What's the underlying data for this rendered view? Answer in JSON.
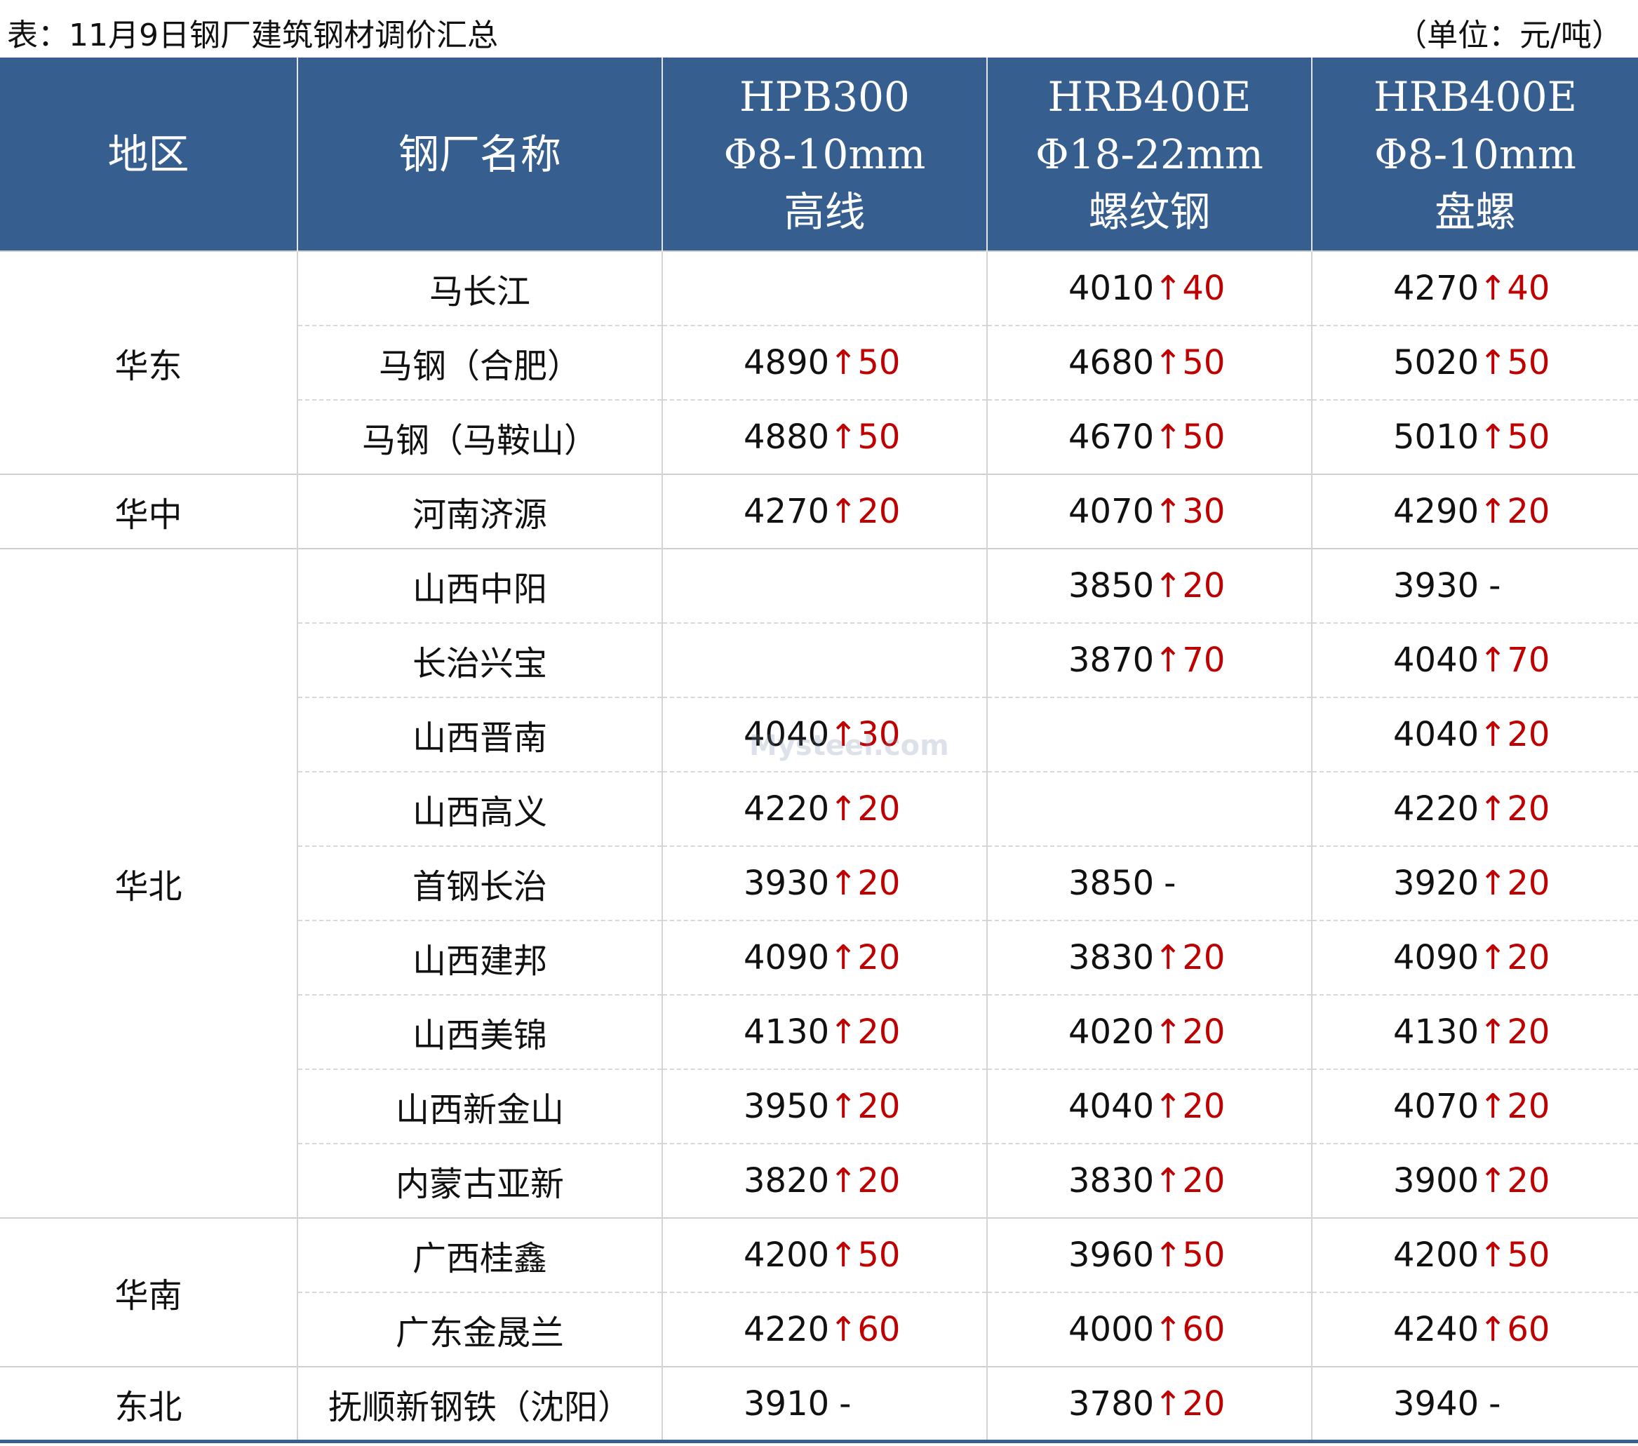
{
  "header": {
    "title": "表：11月9日钢厂建筑钢材调价汇总",
    "unit": "（单位：元/吨）"
  },
  "columns": [
    {
      "lines": [
        "地区"
      ]
    },
    {
      "lines": [
        "钢厂名称"
      ]
    },
    {
      "lines": [
        "HPB300",
        "Φ8-10mm",
        "高线"
      ]
    },
    {
      "lines": [
        "HRB400E",
        "Φ18-22mm",
        "螺纹钢"
      ]
    },
    {
      "lines": [
        "HRB400E",
        "Φ8-10mm",
        "盘螺"
      ]
    }
  ],
  "watermark": "Mysteel.com",
  "regions": [
    {
      "name": "华东",
      "mills": [
        {
          "name": "马长江",
          "cells": [
            null,
            {
              "price": 4010,
              "change": "↑40"
            },
            {
              "price": 4270,
              "change": "↑40"
            }
          ]
        },
        {
          "name": "马钢（合肥）",
          "cells": [
            {
              "price": 4890,
              "change": "↑50"
            },
            {
              "price": 4680,
              "change": "↑50"
            },
            {
              "price": 5020,
              "change": "↑50"
            }
          ]
        },
        {
          "name": "马钢（马鞍山）",
          "cells": [
            {
              "price": 4880,
              "change": "↑50"
            },
            {
              "price": 4670,
              "change": "↑50"
            },
            {
              "price": 5010,
              "change": "↑50"
            }
          ]
        }
      ]
    },
    {
      "name": "华中",
      "mills": [
        {
          "name": "河南济源",
          "cells": [
            {
              "price": 4270,
              "change": "↑20"
            },
            {
              "price": 4070,
              "change": "↑30"
            },
            {
              "price": 4290,
              "change": "↑20"
            }
          ]
        }
      ]
    },
    {
      "name": "华北",
      "mills": [
        {
          "name": "山西中阳",
          "cells": [
            null,
            {
              "price": 3850,
              "change": "↑20"
            },
            {
              "price": 3930,
              "change": "-"
            }
          ]
        },
        {
          "name": "长治兴宝",
          "cells": [
            null,
            {
              "price": 3870,
              "change": "↑70"
            },
            {
              "price": 4040,
              "change": "↑70"
            }
          ]
        },
        {
          "name": "山西晋南",
          "cells": [
            {
              "price": 4040,
              "change": "↑30"
            },
            null,
            {
              "price": 4040,
              "change": "↑20"
            }
          ]
        },
        {
          "name": "山西高义",
          "cells": [
            {
              "price": 4220,
              "change": "↑20"
            },
            null,
            {
              "price": 4220,
              "change": "↑20"
            }
          ]
        },
        {
          "name": "首钢长治",
          "cells": [
            {
              "price": 3930,
              "change": "↑20"
            },
            {
              "price": 3850,
              "change": "-"
            },
            {
              "price": 3920,
              "change": "↑20"
            }
          ]
        },
        {
          "name": "山西建邦",
          "cells": [
            {
              "price": 4090,
              "change": "↑20"
            },
            {
              "price": 3830,
              "change": "↑20"
            },
            {
              "price": 4090,
              "change": "↑20"
            }
          ]
        },
        {
          "name": "山西美锦",
          "cells": [
            {
              "price": 4130,
              "change": "↑20"
            },
            {
              "price": 4020,
              "change": "↑20"
            },
            {
              "price": 4130,
              "change": "↑20"
            }
          ]
        },
        {
          "name": "山西新金山",
          "cells": [
            {
              "price": 3950,
              "change": "↑20"
            },
            {
              "price": 4040,
              "change": "↑20"
            },
            {
              "price": 4070,
              "change": "↑20"
            }
          ]
        },
        {
          "name": "内蒙古亚新",
          "cells": [
            {
              "price": 3820,
              "change": "↑20"
            },
            {
              "price": 3830,
              "change": "↑20"
            },
            {
              "price": 3900,
              "change": "↑20"
            }
          ]
        }
      ]
    },
    {
      "name": "华南",
      "mills": [
        {
          "name": "广西桂鑫",
          "cells": [
            {
              "price": 4200,
              "change": "↑50"
            },
            {
              "price": 3960,
              "change": "↑50"
            },
            {
              "price": 4200,
              "change": "↑50"
            }
          ]
        },
        {
          "name": "广东金晟兰",
          "cells": [
            {
              "price": 4220,
              "change": "↑60"
            },
            {
              "price": 4000,
              "change": "↑60"
            },
            {
              "price": 4240,
              "change": "↑60"
            }
          ]
        }
      ]
    },
    {
      "name": "东北",
      "mills": [
        {
          "name": "抚顺新钢铁（沈阳）",
          "cells": [
            {
              "price": 3910,
              "change": "-"
            },
            {
              "price": 3780,
              "change": "↑20"
            },
            {
              "price": 3940,
              "change": "-"
            }
          ]
        }
      ]
    }
  ]
}
